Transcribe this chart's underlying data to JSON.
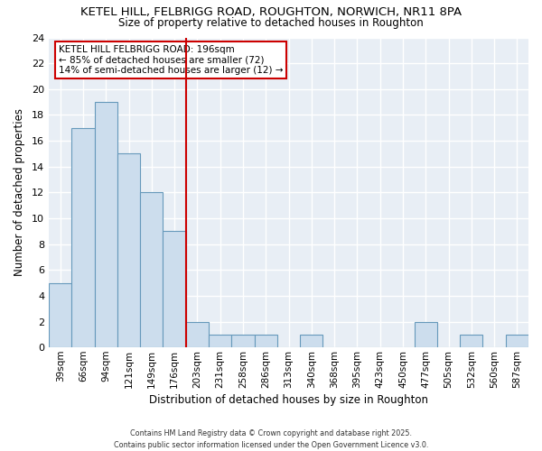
{
  "title": "KETEL HILL, FELBRIGG ROAD, ROUGHTON, NORWICH, NR11 8PA",
  "subtitle": "Size of property relative to detached houses in Roughton",
  "xlabel": "Distribution of detached houses by size in Roughton",
  "ylabel": "Number of detached properties",
  "bar_values": [
    5,
    17,
    19,
    15,
    12,
    9,
    2,
    1,
    1,
    1,
    0,
    1,
    0,
    0,
    0,
    0,
    2,
    0,
    1,
    0,
    1
  ],
  "categories": [
    "39sqm",
    "66sqm",
    "94sqm",
    "121sqm",
    "149sqm",
    "176sqm",
    "203sqm",
    "231sqm",
    "258sqm",
    "286sqm",
    "313sqm",
    "340sqm",
    "368sqm",
    "395sqm",
    "423sqm",
    "450sqm",
    "477sqm",
    "505sqm",
    "532sqm",
    "560sqm",
    "587sqm"
  ],
  "bar_color": "#ccdded",
  "bar_edge_color": "#6699bb",
  "ylim": [
    0,
    24
  ],
  "yticks": [
    0,
    2,
    4,
    6,
    8,
    10,
    12,
    14,
    16,
    18,
    20,
    22,
    24
  ],
  "vline_x_index": 6,
  "vline_color": "#cc0000",
  "annotation_title": "KETEL HILL FELBRIGG ROAD: 196sqm",
  "annotation_line1": "← 85% of detached houses are smaller (72)",
  "annotation_line2": "14% of semi-detached houses are larger (12) →",
  "annotation_box_color": "#cc0000",
  "footer": "Contains HM Land Registry data © Crown copyright and database right 2025.\nContains public sector information licensed under the Open Government Licence v3.0.",
  "bg_color": "#e8eef5",
  "fig_bg_color": "#ffffff"
}
